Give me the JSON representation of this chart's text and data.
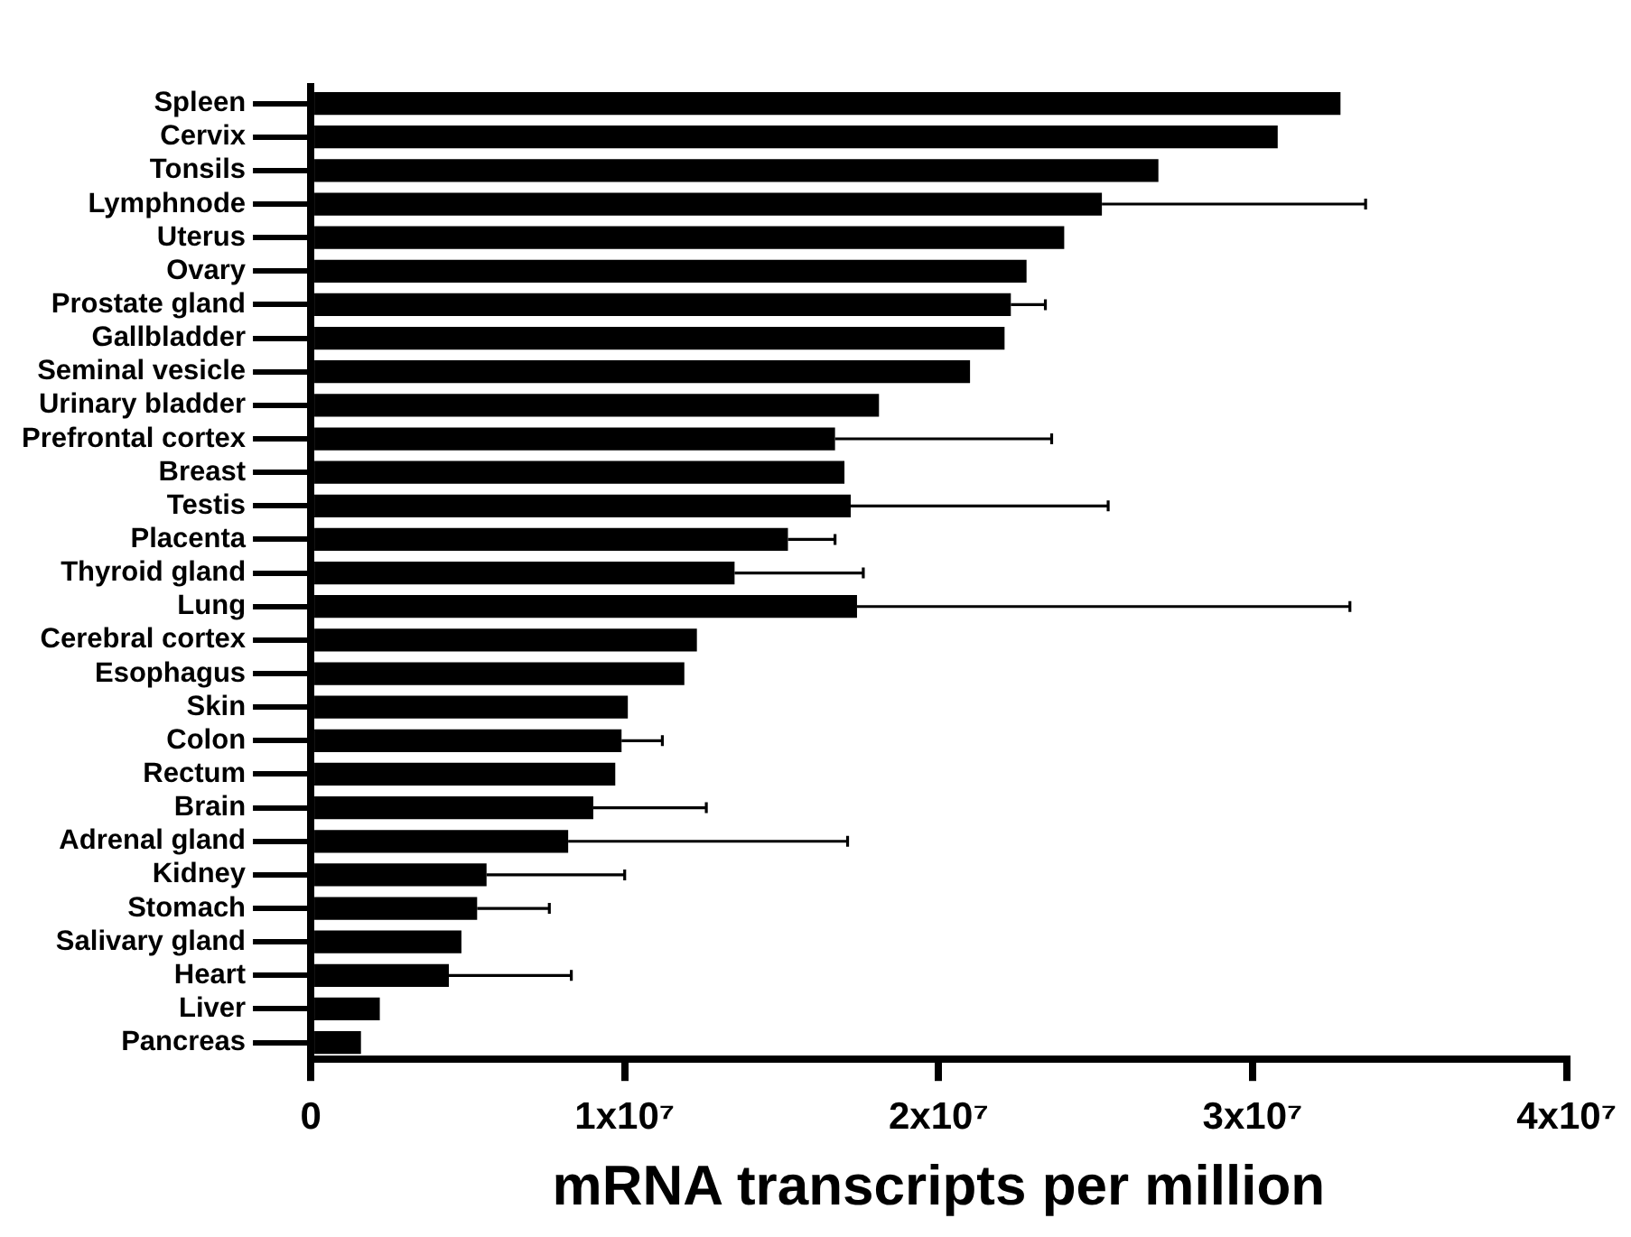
{
  "chart_data": {
    "type": "bar",
    "orientation": "horizontal",
    "xlabel": "mRNA transcripts per million",
    "categories": [
      "Spleen",
      "Cervix",
      "Tonsils",
      "Lymphnode",
      "Uterus",
      "Ovary",
      "Prostate gland",
      "Gallbladder",
      "Seminal vesicle",
      "Urinary bladder",
      "Prefrontal cortex",
      "Breast",
      "Testis",
      "Placenta",
      "Thyroid gland",
      "Lung",
      "Cerebral cortex",
      "Esophagus",
      "Skin",
      "Colon",
      "Rectum",
      "Brain",
      "Adrenal gland",
      "Kidney",
      "Stomach",
      "Salivary gland",
      "Heart",
      "Liver",
      "Pancreas"
    ],
    "values": [
      32800000,
      30800000,
      27000000,
      25200000,
      24000000,
      22800000,
      22300000,
      22100000,
      21000000,
      18100000,
      16700000,
      17000000,
      17200000,
      15200000,
      13500000,
      17400000,
      12300000,
      11900000,
      10100000,
      9900000,
      9700000,
      9000000,
      8200000,
      5600000,
      5300000,
      4800000,
      4400000,
      2200000,
      1600000
    ],
    "errors": [
      null,
      null,
      null,
      [
        25200000,
        33600000
      ],
      null,
      null,
      [
        22300000,
        23400000
      ],
      null,
      null,
      null,
      [
        16700000,
        23600000
      ],
      null,
      [
        17200000,
        25400000
      ],
      [
        15200000,
        16700000
      ],
      [
        13500000,
        17600000
      ],
      [
        17400000,
        33100000
      ],
      null,
      null,
      null,
      [
        9900000,
        11200000
      ],
      null,
      [
        9000000,
        12600000
      ],
      [
        8200000,
        17100000
      ],
      [
        5600000,
        10000000
      ],
      [
        5300000,
        7600000
      ],
      null,
      [
        4400000,
        8300000
      ],
      null,
      null
    ],
    "color": "#000000",
    "xlim": [
      0,
      40000000
    ],
    "xticks": [
      0,
      {
        "value": 10000000,
        "label": "1x10⁷"
      },
      {
        "value": 20000000,
        "label": "2x10⁷"
      },
      {
        "value": 30000000,
        "label": "3x10⁷"
      },
      {
        "value": 40000000,
        "label": "4x10⁷"
      }
    ],
    "grid": false,
    "legend": false
  }
}
